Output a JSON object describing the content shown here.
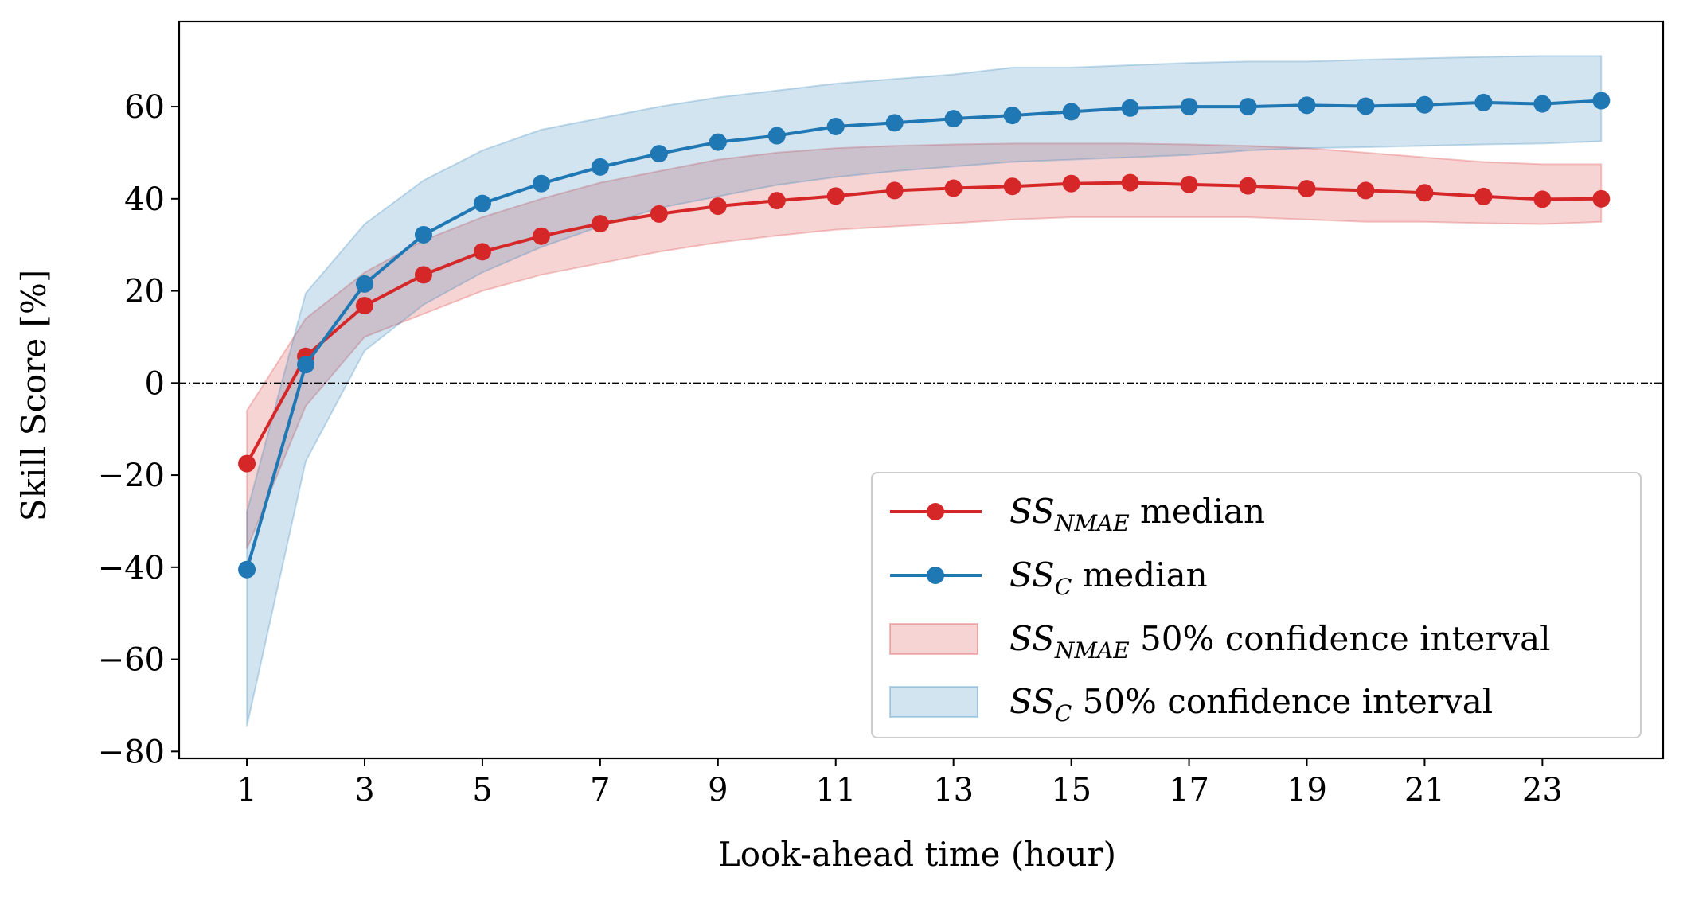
{
  "chart_data": {
    "type": "line",
    "xlabel": "Look-ahead time (hour)",
    "ylabel": "Skill Score [%]",
    "xlim": [
      -0.15,
      25.05
    ],
    "ylim": [
      -81.5,
      78.5
    ],
    "xticks": [
      1,
      3,
      5,
      7,
      9,
      11,
      13,
      15,
      17,
      19,
      21,
      23
    ],
    "yticks": [
      -80,
      -60,
      -40,
      -20,
      0,
      20,
      40,
      60
    ],
    "ytick_labels": [
      "−80",
      "−60",
      "−40",
      "−20",
      "0",
      "20",
      "40",
      "60"
    ],
    "reference_line": {
      "y": 0,
      "style": "dash-dot",
      "color": "#000000"
    },
    "x": [
      1,
      2,
      3,
      4,
      5,
      6,
      7,
      8,
      9,
      10,
      11,
      12,
      13,
      14,
      15,
      16,
      17,
      18,
      19,
      20,
      21,
      22,
      23,
      24
    ],
    "series": [
      {
        "name": "SS_NMAE median",
        "legend_main": "SS",
        "legend_sub": "NMAE",
        "legend_suffix": " median",
        "color": "#d62728",
        "values": [
          -17.5,
          5.8,
          16.8,
          23.5,
          28.5,
          31.9,
          34.6,
          36.7,
          38.4,
          39.6,
          40.6,
          41.8,
          42.3,
          42.7,
          43.3,
          43.5,
          43.1,
          42.8,
          42.2,
          41.8,
          41.3,
          40.5,
          39.9,
          40.0
        ]
      },
      {
        "name": "SS_C median",
        "legend_main": "SS",
        "legend_sub": "C",
        "legend_suffix": " median",
        "color": "#1f77b4",
        "values": [
          -40.5,
          4.0,
          21.5,
          32.2,
          39.0,
          43.3,
          46.9,
          49.8,
          52.3,
          53.7,
          55.7,
          56.5,
          57.4,
          58.1,
          58.9,
          59.7,
          60.0,
          60.0,
          60.3,
          60.1,
          60.4,
          60.9,
          60.6,
          61.3
        ]
      }
    ],
    "bands": [
      {
        "name": "SS_NMAE 50% confidence interval",
        "legend_main": "SS",
        "legend_sub": "NMAE",
        "legend_suffix": " 50% confidence interval",
        "color": "#d62728",
        "lower": [
          -36,
          -5,
          10,
          15,
          20,
          23.5,
          26,
          28.5,
          30.5,
          32,
          33.3,
          34,
          34.7,
          35.5,
          36,
          36,
          36,
          36,
          35.5,
          35,
          35,
          34.7,
          34.5,
          35
        ],
        "upper": [
          -6,
          14,
          24,
          31,
          36,
          40,
          43.5,
          46,
          48.5,
          50,
          51,
          51.5,
          51.8,
          52,
          52,
          52,
          51.8,
          51.5,
          51,
          50,
          49,
          48,
          47.5,
          47.5
        ]
      },
      {
        "name": "SS_C 50% confidence interval",
        "legend_main": "SS",
        "legend_sub": "C",
        "legend_suffix": " 50% confidence interval",
        "color": "#1f77b4",
        "lower": [
          -74.5,
          -17,
          7,
          17,
          24,
          29.5,
          34,
          38,
          40.5,
          43,
          44.7,
          46,
          47,
          48,
          48.5,
          49,
          49.5,
          50.5,
          51,
          51.2,
          51.5,
          51.8,
          52,
          52.5
        ],
        "upper": [
          -28,
          19.5,
          34.5,
          44,
          50.5,
          55,
          57.5,
          60,
          62,
          63.5,
          65,
          66,
          67,
          68.5,
          68.5,
          69,
          69.5,
          69.8,
          69.8,
          70.2,
          70.5,
          70.8,
          71,
          71
        ]
      }
    ]
  }
}
